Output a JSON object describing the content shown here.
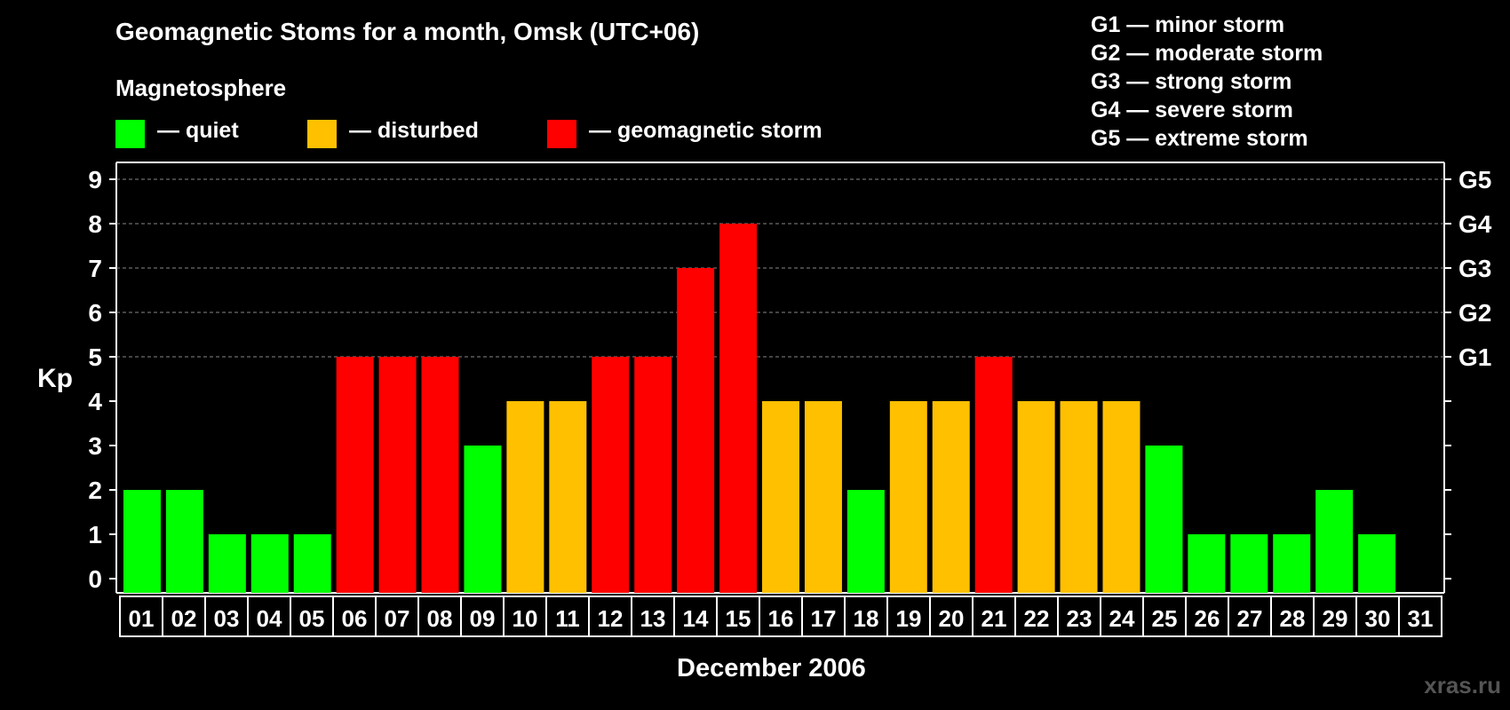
{
  "title": "Geomagnetic Stoms for a month, Omsk (UTC+06)",
  "legend": {
    "title": "Magnetosphere",
    "items": [
      {
        "label": "— quiet",
        "color": "#00ff00"
      },
      {
        "label": "— disturbed",
        "color": "#ffc000"
      },
      {
        "label": "— geomagnetic storm",
        "color": "#ff0000"
      }
    ]
  },
  "g_scale": [
    "G1 — minor storm",
    "G2 — moderate storm",
    "G3 — strong storm",
    "G4 — severe storm",
    "G5 — extreme storm"
  ],
  "watermark": "xras.ru",
  "chart_data": {
    "type": "bar",
    "title": "Geomagnetic Stoms for a month, Omsk (UTC+06)",
    "xlabel": "December 2006",
    "ylabel": "Kp",
    "ylim": [
      0,
      9
    ],
    "yticks": [
      0,
      1,
      2,
      3,
      4,
      5,
      6,
      7,
      8,
      9
    ],
    "right_axis_labels": [
      {
        "y": 5,
        "label": "G1"
      },
      {
        "y": 6,
        "label": "G2"
      },
      {
        "y": 7,
        "label": "G3"
      },
      {
        "y": 8,
        "label": "G4"
      },
      {
        "y": 9,
        "label": "G5"
      }
    ],
    "grid": "horizontal dashed at 5–9",
    "categories": [
      "01",
      "02",
      "03",
      "04",
      "05",
      "06",
      "07",
      "08",
      "09",
      "10",
      "11",
      "12",
      "13",
      "14",
      "15",
      "16",
      "17",
      "18",
      "19",
      "20",
      "21",
      "22",
      "23",
      "24",
      "25",
      "26",
      "27",
      "28",
      "29",
      "30",
      "31"
    ],
    "values": [
      2,
      2,
      1,
      1,
      1,
      5,
      5,
      5,
      3,
      4,
      4,
      5,
      5,
      7,
      8,
      4,
      4,
      2,
      4,
      4,
      5,
      4,
      4,
      4,
      3,
      1,
      1,
      1,
      2,
      1,
      null
    ],
    "colors": {
      "quiet": "#00ff00",
      "disturbed": "#ffc000",
      "storm": "#ff0000"
    }
  }
}
